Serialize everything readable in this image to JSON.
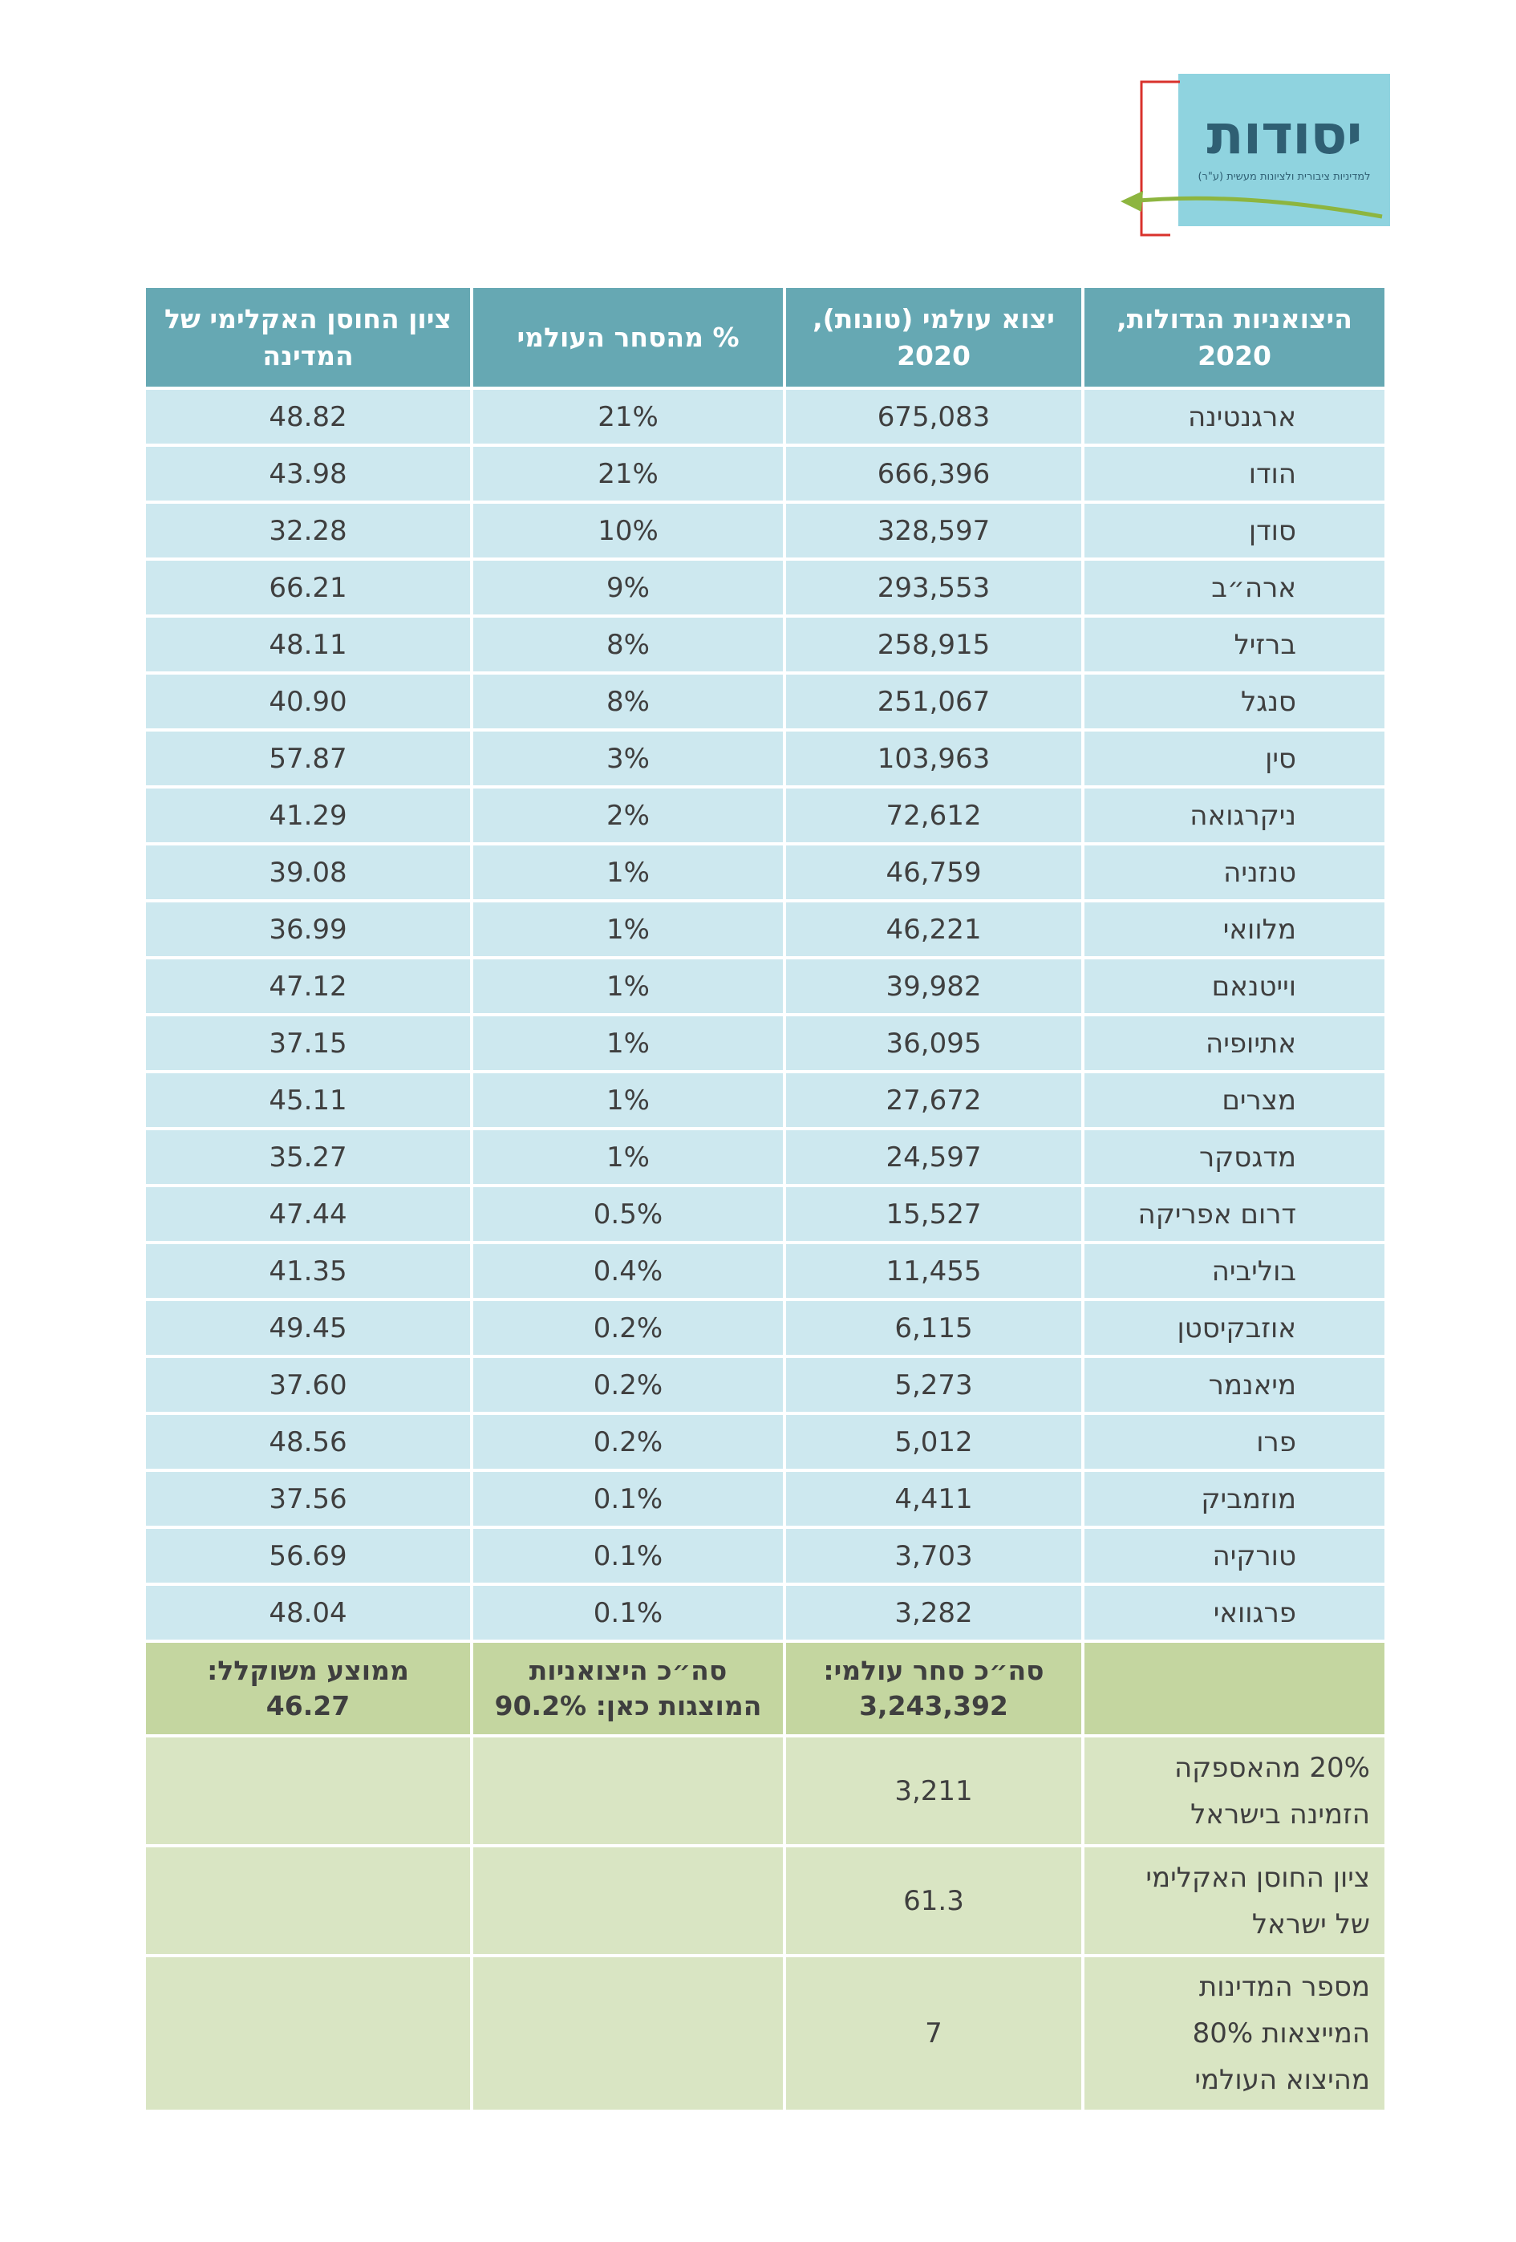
{
  "logo": {
    "title": "יסודות",
    "subtitle": "למדיניות ציבורית ולציונות מעשית (ע\"ר)",
    "colors": {
      "box": "#8fd3df",
      "red": "#d9322c",
      "green": "#8db53f",
      "text": "#2f5f73"
    }
  },
  "table": {
    "headers": [
      "היצואניות הגדולות, 2020",
      "יצוא עולמי (טונות), 2020",
      "% מהסחר העולמי",
      "ציון החוסן האקלימי של המדינה"
    ],
    "rows": [
      {
        "country": "ארגנטינה",
        "export": "675,083",
        "share": "21%",
        "score": "48.82"
      },
      {
        "country": "הודו",
        "export": "666,396",
        "share": "21%",
        "score": "43.98"
      },
      {
        "country": "סודן",
        "export": "328,597",
        "share": "10%",
        "score": "32.28"
      },
      {
        "country": "ארה״ב",
        "export": "293,553",
        "share": "9%",
        "score": "66.21"
      },
      {
        "country": "ברזיל",
        "export": "258,915",
        "share": "8%",
        "score": "48.11"
      },
      {
        "country": "סנגל",
        "export": "251,067",
        "share": "8%",
        "score": "40.90"
      },
      {
        "country": "סין",
        "export": "103,963",
        "share": "3%",
        "score": "57.87"
      },
      {
        "country": "ניקרגואה",
        "export": "72,612",
        "share": "2%",
        "score": "41.29"
      },
      {
        "country": "טנזניה",
        "export": "46,759",
        "share": "1%",
        "score": "39.08"
      },
      {
        "country": "מלוואי",
        "export": "46,221",
        "share": "1%",
        "score": "36.99"
      },
      {
        "country": "וייטנאם",
        "export": "39,982",
        "share": "1%",
        "score": "47.12"
      },
      {
        "country": "אתיופיה",
        "export": "36,095",
        "share": "1%",
        "score": "37.15"
      },
      {
        "country": "מצרים",
        "export": "27,672",
        "share": "1%",
        "score": "45.11"
      },
      {
        "country": "מדגסקר",
        "export": "24,597",
        "share": "1%",
        "score": "35.27"
      },
      {
        "country": "דרום אפריקה",
        "export": "15,527",
        "share": "0.5%",
        "score": "47.44"
      },
      {
        "country": "בוליביה",
        "export": "11,455",
        "share": "0.4%",
        "score": "41.35"
      },
      {
        "country": "אוזבקיסטן",
        "export": "6,115",
        "share": "0.2%",
        "score": "49.45"
      },
      {
        "country": "מיאנמר",
        "export": "5,273",
        "share": "0.2%",
        "score": "37.60"
      },
      {
        "country": "פרו",
        "export": "5,012",
        "share": "0.2%",
        "score": "48.56"
      },
      {
        "country": "מוזמביק",
        "export": "4,411",
        "share": "0.1%",
        "score": "37.56"
      },
      {
        "country": "טורקיה",
        "export": "3,703",
        "share": "0.1%",
        "score": "56.69"
      },
      {
        "country": "פרגוואי",
        "export": "3,282",
        "share": "0.1%",
        "score": "48.04"
      }
    ],
    "totals": {
      "country": "",
      "export_label": "סה״כ סחר עולמי:",
      "export_value": "3,243,392",
      "share_label": "סה״כ היצואניות",
      "share_value": "המוצגות כאן: 90.2%",
      "score_label": "ממוצע משוקלל:",
      "score_value": "46.27"
    },
    "extra": [
      {
        "label_lines": [
          "20% מהאספקה",
          "הזמינה בישראל"
        ],
        "value": "3,211"
      },
      {
        "label_lines": [
          "ציון החוסן האקלימי",
          "של ישראל"
        ],
        "value": "61.3"
      },
      {
        "label_lines": [
          "מספר המדינות",
          "המייצאות 80%",
          "מהיצוא העולמי"
        ],
        "value": "7"
      }
    ]
  }
}
